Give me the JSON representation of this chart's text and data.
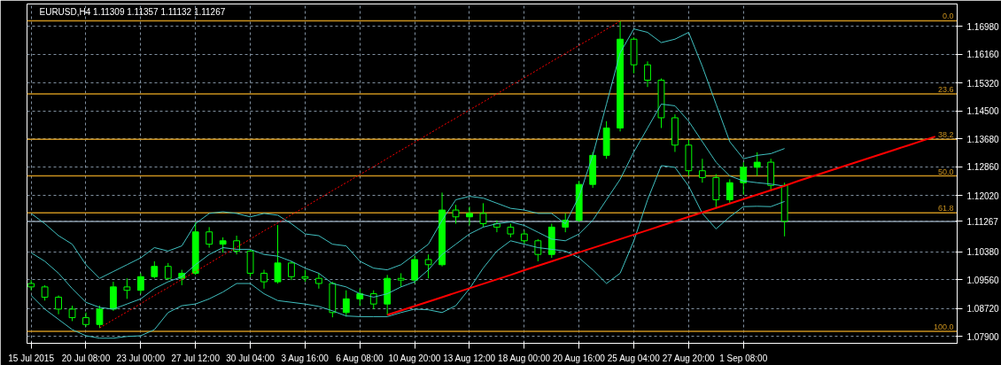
{
  "chart_data": {
    "type": "candlestick",
    "title": "EURUSD,H4  1.11309 1.11357 1.11132 1.11267",
    "color": "#00ff00",
    "categories": [
      "15 Jul 2015",
      null,
      null,
      null,
      "20 Jul 08:00",
      null,
      null,
      null,
      "23 Jul 00:00",
      null,
      null,
      null,
      "27 Jul 12:00",
      null,
      null,
      null,
      "30 Jul 04:00",
      null,
      null,
      null,
      "3 Aug 16:00",
      null,
      null,
      null,
      "6 Aug 08:00",
      null,
      null,
      null,
      "10 Aug 20:00",
      null,
      null,
      null,
      "13 Aug 12:00",
      null,
      null,
      null,
      "18 Aug 00:00",
      null,
      null,
      null,
      "20 Aug 16:00",
      null,
      null,
      null,
      "25 Aug 04:00",
      null,
      null,
      null,
      "27 Aug 20:00",
      null,
      null,
      null,
      "1 Sep 08:00",
      null,
      null,
      null,
      null,
      null,
      null,
      null,
      null,
      null,
      null,
      null,
      null,
      null,
      null,
      null
    ],
    "ohlc": [
      [
        1.0945,
        1.0955,
        1.0925,
        1.0935
      ],
      [
        1.0935,
        1.094,
        1.0895,
        1.0905
      ],
      [
        1.0905,
        1.091,
        1.0855,
        1.087
      ],
      [
        1.087,
        1.088,
        1.0835,
        1.0845
      ],
      [
        1.0845,
        1.086,
        1.0818,
        1.0825
      ],
      [
        1.0825,
        1.088,
        1.0815,
        1.087
      ],
      [
        1.087,
        1.095,
        1.0865,
        1.0935
      ],
      [
        1.0935,
        1.096,
        1.09,
        1.0925
      ],
      [
        1.0925,
        1.0975,
        1.0915,
        1.0965
      ],
      [
        1.0965,
        1.101,
        1.096,
        1.0995
      ],
      [
        1.0995,
        1.1005,
        1.0955,
        1.096
      ],
      [
        1.096,
        1.0985,
        1.094,
        1.0975
      ],
      [
        1.0975,
        1.1124,
        1.097,
        1.1096
      ],
      [
        1.1096,
        1.111,
        1.105,
        1.106
      ],
      [
        1.106,
        1.108,
        1.1035,
        1.107
      ],
      [
        1.107,
        1.1085,
        1.103,
        1.104
      ],
      [
        1.104,
        1.1045,
        1.0965,
        1.0975
      ],
      [
        1.0975,
        1.0985,
        1.093,
        1.095
      ],
      [
        1.095,
        1.1116,
        1.0945,
        1.1005
      ],
      [
        1.1005,
        1.101,
        1.0955,
        1.0965
      ],
      [
        1.0965,
        1.0985,
        1.095,
        1.096
      ],
      [
        1.096,
        1.0975,
        1.093,
        1.0945
      ],
      [
        1.0945,
        1.095,
        1.0846,
        1.086
      ],
      [
        1.086,
        1.0925,
        1.0848,
        1.09
      ],
      [
        1.09,
        1.093,
        1.088,
        1.0915
      ],
      [
        1.0915,
        1.0925,
        1.087,
        1.0885
      ],
      [
        1.0885,
        1.097,
        1.0853,
        1.096
      ],
      [
        1.096,
        1.0975,
        1.0935,
        1.0955
      ],
      [
        1.0955,
        1.1025,
        1.0945,
        1.1015
      ],
      [
        1.1015,
        1.103,
        1.096,
        1.1
      ],
      [
        1.1,
        1.1211,
        1.0995,
        1.116
      ],
      [
        1.116,
        1.1175,
        1.112,
        1.114
      ],
      [
        1.114,
        1.117,
        1.1115,
        1.115
      ],
      [
        1.115,
        1.118,
        1.111,
        1.112
      ],
      [
        1.112,
        1.113,
        1.1095,
        1.111
      ],
      [
        1.111,
        1.112,
        1.108,
        1.109
      ],
      [
        1.109,
        1.11,
        1.106,
        1.107
      ],
      [
        1.107,
        1.1075,
        1.101,
        1.103
      ],
      [
        1.103,
        1.112,
        1.102,
        1.111
      ],
      [
        1.111,
        1.115,
        1.1095,
        1.113
      ],
      [
        1.113,
        1.1245,
        1.1125,
        1.1235
      ],
      [
        1.1235,
        1.133,
        1.1225,
        1.132
      ],
      [
        1.132,
        1.142,
        1.131,
        1.14
      ],
      [
        1.14,
        1.1713,
        1.139,
        1.166
      ],
      [
        1.166,
        1.1665,
        1.156,
        1.1585
      ],
      [
        1.1585,
        1.1595,
        1.152,
        1.154
      ],
      [
        1.154,
        1.1545,
        1.14,
        1.143
      ],
      [
        1.143,
        1.144,
        1.133,
        1.135
      ],
      [
        1.135,
        1.1365,
        1.126,
        1.1275
      ],
      [
        1.1275,
        1.131,
        1.124,
        1.1255
      ],
      [
        1.1255,
        1.1265,
        1.1166,
        1.119
      ],
      [
        1.119,
        1.125,
        1.118,
        1.124
      ],
      [
        1.124,
        1.13,
        1.1205,
        1.1285
      ],
      [
        1.1285,
        1.1329,
        1.126,
        1.13
      ],
      [
        1.13,
        1.131,
        1.1215,
        1.1232
      ],
      [
        1.1232,
        1.124,
        1.1083,
        1.1127
      ],
      null,
      null,
      null,
      null,
      null,
      null,
      null,
      null,
      null,
      null,
      null,
      null
    ],
    "series": [
      {
        "type": "line",
        "color": "#40c0c0",
        "values": [
          1.115,
          1.112,
          1.1085,
          1.106,
          1.1,
          1.096,
          1.098,
          1.1,
          1.102,
          1.105,
          1.104,
          1.1055,
          1.112,
          1.115,
          1.1155,
          1.115,
          1.114,
          1.115,
          1.1145,
          1.112,
          1.109,
          1.1085,
          1.106,
          1.1055,
          1.101,
          1.099,
          1.0985,
          1.1,
          1.103,
          1.106,
          1.113,
          1.119,
          1.12,
          1.1195,
          1.118,
          1.1165,
          1.116,
          1.115,
          1.115,
          1.112,
          1.12,
          1.132,
          1.147,
          1.162,
          1.169,
          1.168,
          1.165,
          1.166,
          1.168,
          1.158,
          1.147,
          1.136,
          1.131,
          1.132,
          1.1325,
          1.134,
          null,
          null,
          null,
          null,
          null,
          null,
          null,
          null,
          null,
          null,
          null,
          null
        ]
      },
      {
        "type": "line",
        "color": "#40c0c0",
        "values": [
          1.1035,
          1.101,
          1.0975,
          1.093,
          1.089,
          1.0875,
          1.087,
          1.0885,
          1.09,
          1.093,
          1.095,
          1.0965,
          1.1,
          1.103,
          1.105,
          1.1045,
          1.1045,
          1.103,
          1.1025,
          1.101,
          1.099,
          1.0975,
          1.0945,
          1.0935,
          1.0915,
          1.0905,
          1.0915,
          1.0935,
          1.095,
          1.0985,
          1.103,
          1.106,
          1.109,
          1.111,
          1.112,
          1.1125,
          1.1115,
          1.1095,
          1.1075,
          1.107,
          1.109,
          1.113,
          1.119,
          1.125,
          1.133,
          1.14,
          1.147,
          1.1465,
          1.142,
          1.136,
          1.13,
          1.126,
          1.1245,
          1.124,
          1.1236,
          1.123,
          null,
          null,
          null,
          null,
          null,
          null,
          null,
          null,
          null,
          null,
          null,
          null
        ]
      },
      {
        "type": "line",
        "color": "#40c0c0",
        "values": [
          1.091,
          1.087,
          1.084,
          1.081,
          1.0792,
          1.0785,
          1.0785,
          1.079,
          1.0792,
          1.081,
          1.086,
          1.088,
          1.0885,
          1.09,
          1.092,
          1.0945,
          1.0945,
          1.0915,
          1.0895,
          1.089,
          1.0885,
          1.0878,
          1.0865,
          1.085,
          1.0848,
          1.0848,
          1.0848,
          1.086,
          1.087,
          1.0868,
          1.086,
          1.088,
          1.093,
          1.099,
          1.104,
          1.107,
          1.106,
          1.105,
          1.1045,
          1.104,
          1.102,
          1.0985,
          1.0945,
          1.0975,
          1.107,
          1.119,
          1.129,
          1.1285,
          1.123,
          1.115,
          1.1105,
          1.114,
          1.117,
          1.1171,
          1.117,
          1.1185,
          null,
          null,
          null,
          null,
          null,
          null,
          null,
          null,
          null,
          null,
          null,
          null
        ]
      },
      {
        "type": "line",
        "color": "#ff0000",
        "values": [
          null,
          null,
          null,
          null,
          null,
          null,
          null,
          null,
          null,
          null,
          null,
          null,
          null,
          null,
          null,
          null,
          null,
          null,
          null,
          null,
          null,
          null,
          null,
          null,
          null,
          null,
          1.0853,
          1.0866,
          1.0879,
          1.0892,
          1.0905,
          1.0918,
          1.0931,
          1.0944,
          1.0957,
          1.097,
          1.0984,
          1.0997,
          1.101,
          1.1023,
          1.1036,
          1.1049,
          1.1062,
          1.1075,
          1.1088,
          1.1101,
          1.1114,
          1.1127,
          1.114,
          1.1153,
          1.1166,
          1.1179,
          1.1192,
          1.1205,
          1.1218,
          1.1231,
          1.1245,
          1.1258,
          1.1271,
          1.1284,
          1.1297,
          1.131,
          1.1323,
          1.1336,
          1.1349,
          1.1362,
          1.1375,
          null
        ]
      },
      {
        "type": "line",
        "color": "#ff0000",
        "line_style": "dotted",
        "values": [
          null,
          null,
          null,
          null,
          null,
          1.0815,
          1.0839,
          1.0862,
          1.0886,
          1.091,
          1.0933,
          1.0957,
          1.098,
          1.1004,
          1.1028,
          1.1051,
          1.1075,
          1.1099,
          1.1122,
          1.1146,
          1.1169,
          1.1193,
          1.1217,
          1.124,
          1.1264,
          1.1287,
          1.1311,
          1.1335,
          1.1358,
          1.1382,
          1.1406,
          1.1429,
          1.1453,
          1.1476,
          1.15,
          1.1524,
          1.1547,
          1.1571,
          1.1595,
          1.1618,
          1.1642,
          1.1665,
          1.1689,
          1.1713,
          null,
          null,
          null,
          null,
          null,
          null,
          null,
          null,
          null,
          null,
          null,
          null,
          null,
          null,
          null,
          null,
          null,
          null,
          null,
          null,
          null,
          null,
          null,
          null
        ]
      }
    ],
    "ylim": [
      1.077,
      1.1763
    ],
    "yticks": [
      {
        "value": 1.079,
        "label": "1.07900"
      },
      {
        "value": 1.0872,
        "label": "1.08720"
      },
      {
        "value": 1.0956,
        "label": "1.09560"
      },
      {
        "value": 1.1038,
        "label": "1.10380"
      },
      {
        "value": 1.11267,
        "label": "1.11267"
      },
      {
        "value": 1.1202,
        "label": "1.12020"
      },
      {
        "value": 1.1286,
        "label": "1.12860"
      },
      {
        "value": 1.1368,
        "label": "1.13680"
      },
      {
        "value": 1.145,
        "label": "1.14500"
      },
      {
        "value": 1.1532,
        "label": "1.15320"
      },
      {
        "value": 1.1616,
        "label": "1.16160"
      },
      {
        "value": 1.1698,
        "label": "1.16980"
      }
    ],
    "ref_lines": [
      {
        "axis": "y",
        "value": 1.1714,
        "color": "#c8901e"
      },
      {
        "axis": "y",
        "value": 1.15,
        "color": "#c8901e"
      },
      {
        "axis": "y",
        "value": 1.1367,
        "color": "#c8901e"
      },
      {
        "axis": "y",
        "value": 1.126,
        "color": "#c8901e"
      },
      {
        "axis": "y",
        "value": 1.1152,
        "color": "#c8901e"
      },
      {
        "axis": "y",
        "value": 1.0805,
        "color": "#c8901e"
      },
      {
        "axis": "y",
        "value": 1.11267,
        "color": "#8a9aa8"
      }
    ],
    "annotations": [
      {
        "text": "0.0",
        "y": 1.1714
      },
      {
        "text": "23.6",
        "y": 1.15
      },
      {
        "text": "38.2",
        "y": 1.1367
      },
      {
        "text": "50.0",
        "y": 1.126
      },
      {
        "text": "61.8",
        "y": 1.1152
      },
      {
        "text": "100.0",
        "y": 1.0805
      }
    ],
    "grid": true,
    "marker": "none"
  }
}
